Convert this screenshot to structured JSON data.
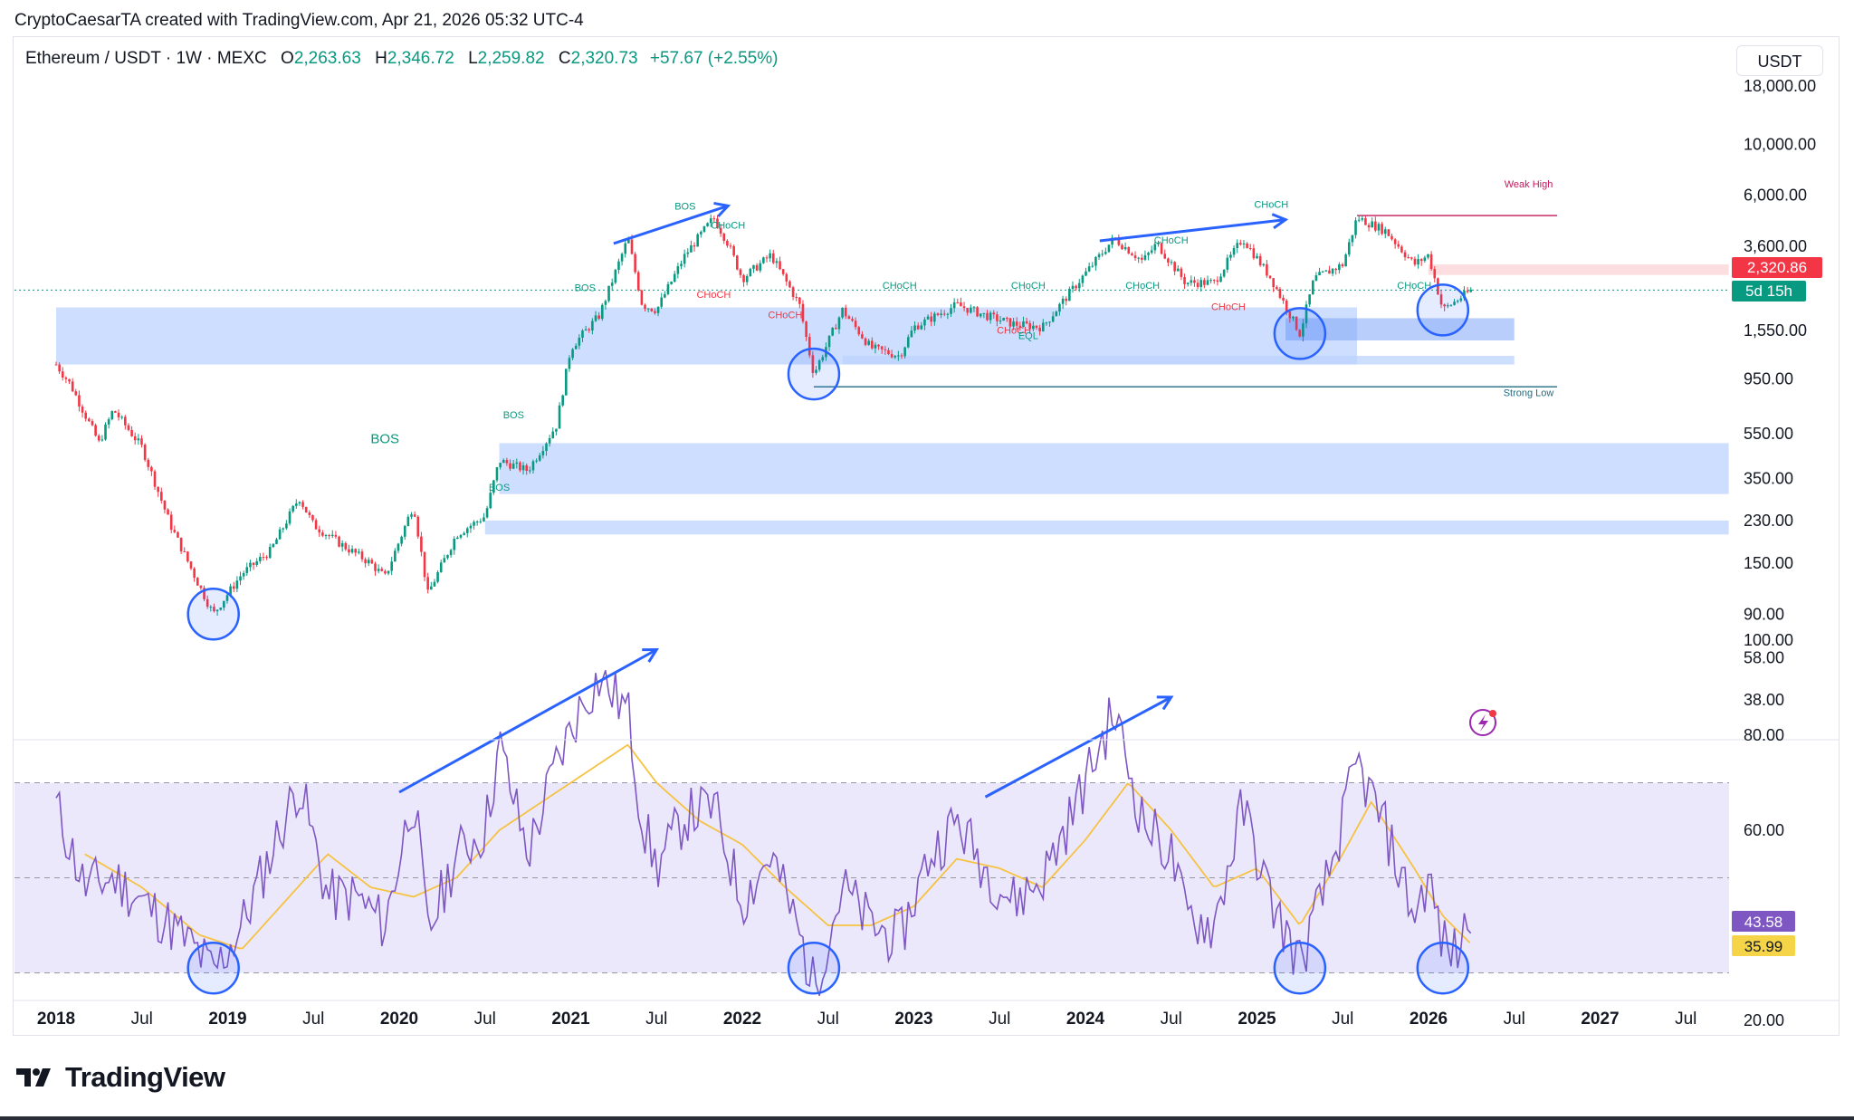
{
  "header": {
    "attribution": "CryptoCaesarTA created with TradingView.com, Apr 21, 2026 05:32 UTC-4"
  },
  "legend": {
    "symbol": "Ethereum / USDT · 1W · MEXC",
    "open_label": "O",
    "open": "2,263.63",
    "high_label": "H",
    "high": "2,346.72",
    "low_label": "L",
    "low": "2,259.82",
    "close_label": "C",
    "close": "2,320.73",
    "change": "+57.67 (+2.55%)"
  },
  "currency_button": "USDT",
  "brand": "TradingView",
  "colors": {
    "up": "#089981",
    "down": "#f23645",
    "zone": "#bcd3ff",
    "zone_dark": "#7fa6f5",
    "arrow": "#2962ff",
    "rsi": "#7e57c2",
    "rsi_ma": "#f5c242",
    "rsi_band": "#ece8fb"
  },
  "chart_data": [
    {
      "type": "candlestick",
      "title": "Ethereum / USDT · 1W · MEXC",
      "scale": "log",
      "y_ticks": [
        "18,000.00",
        "10,000.00",
        "6,000.00",
        "3,600.00",
        "1,550.00",
        "950.00",
        "550.00",
        "350.00",
        "230.00",
        "150.00",
        "90.00",
        "58.00",
        "38.00"
      ],
      "x_ticks": [
        "2018",
        "Jul",
        "2019",
        "Jul",
        "2020",
        "Jul",
        "2021",
        "Jul",
        "2022",
        "Jul",
        "2023",
        "Jul",
        "2024",
        "Jul",
        "2025",
        "Jul",
        "2026",
        "Jul",
        "2027",
        "Jul"
      ],
      "last_price_label": "2,320.86",
      "countdown_label": "5d 15h",
      "path_points": [
        [
          "2018-01",
          1100
        ],
        [
          "2018-02",
          900
        ],
        [
          "2018-04",
          500
        ],
        [
          "2018-05",
          700
        ],
        [
          "2018-07",
          480
        ],
        [
          "2018-09",
          220
        ],
        [
          "2018-11",
          120
        ],
        [
          "2018-12",
          90
        ],
        [
          "2019-02",
          135
        ],
        [
          "2019-04",
          170
        ],
        [
          "2019-06",
          290
        ],
        [
          "2019-07",
          220
        ],
        [
          "2019-09",
          180
        ],
        [
          "2019-11",
          150
        ],
        [
          "2019-12",
          130
        ],
        [
          "2020-02",
          270
        ],
        [
          "2020-03",
          110
        ],
        [
          "2020-05",
          200
        ],
        [
          "2020-07",
          240
        ],
        [
          "2020-08",
          420
        ],
        [
          "2020-10",
          380
        ],
        [
          "2020-12",
          600
        ],
        [
          "2021-01",
          1300
        ],
        [
          "2021-03",
          1800
        ],
        [
          "2021-05",
          3900
        ],
        [
          "2021-06",
          2000
        ],
        [
          "2021-07",
          1900
        ],
        [
          "2021-09",
          3300
        ],
        [
          "2021-11",
          4800
        ],
        [
          "2021-12",
          3700
        ],
        [
          "2022-01",
          2600
        ],
        [
          "2022-03",
          3300
        ],
        [
          "2022-05",
          2000
        ],
        [
          "2022-06",
          1000
        ],
        [
          "2022-08",
          1900
        ],
        [
          "2022-10",
          1300
        ],
        [
          "2022-12",
          1200
        ],
        [
          "2023-01",
          1600
        ],
        [
          "2023-04",
          2000
        ],
        [
          "2023-06",
          1800
        ],
        [
          "2023-08",
          1650
        ],
        [
          "2023-10",
          1600
        ],
        [
          "2023-12",
          2300
        ],
        [
          "2024-03",
          3900
        ],
        [
          "2024-05",
          3100
        ],
        [
          "2024-06",
          3700
        ],
        [
          "2024-08",
          2500
        ],
        [
          "2024-10",
          2500
        ],
        [
          "2024-12",
          3900
        ],
        [
          "2025-02",
          2600
        ],
        [
          "2025-04",
          1500
        ],
        [
          "2025-05",
          2600
        ],
        [
          "2025-07",
          3000
        ],
        [
          "2025-08",
          4800
        ],
        [
          "2025-10",
          4200
        ],
        [
          "2025-12",
          3000
        ],
        [
          "2026-01",
          3300
        ],
        [
          "2026-02",
          1900
        ],
        [
          "2026-03",
          2100
        ],
        [
          "2026-04",
          2320
        ]
      ],
      "zones": [
        {
          "from": 1100,
          "to": 1950,
          "x_start": "2018-01",
          "x_end": "2025-08",
          "tone": "zone"
        },
        {
          "from": 1100,
          "to": 1200,
          "x_start": "2022-08",
          "x_end": "2026-07",
          "tone": "zone"
        },
        {
          "from": 1400,
          "to": 1750,
          "x_start": "2025-03",
          "x_end": "2026-07",
          "tone": "zone_dark"
        },
        {
          "from": 300,
          "to": 500,
          "x_start": "2020-08",
          "x_end": "2027-10",
          "tone": "zone"
        },
        {
          "from": 200,
          "to": 230,
          "x_start": "2020-07",
          "x_end": "2027-10",
          "tone": "zone"
        },
        {
          "from": 2700,
          "to": 3000,
          "x_start": "2026-01",
          "x_end": "2027-10",
          "tone": "premium"
        }
      ],
      "annotations": [
        {
          "text": "BOS",
          "x": "2019-12",
          "y": 500
        },
        {
          "text": "BOS",
          "x": "2020-09",
          "y": 640
        },
        {
          "text": "BOS",
          "x": "2020-08",
          "y": 310
        },
        {
          "text": "BOS",
          "x": "2021-02",
          "y": 2300
        },
        {
          "text": "BOS",
          "x": "2021-09",
          "y": 5200
        },
        {
          "text": "CHoCH",
          "x": "2021-12",
          "y": 4300
        },
        {
          "text": "CHoCH",
          "x": "2021-11",
          "y": 2150
        },
        {
          "text": "CHoCH",
          "x": "2022-04",
          "y": 1750
        },
        {
          "text": "CHoCH",
          "x": "2022-12",
          "y": 2350
        },
        {
          "text": "CHoCH",
          "x": "2023-09",
          "y": 2350
        },
        {
          "text": "CHoCH",
          "x": "2023-08",
          "y": 1500
        },
        {
          "text": "EQL",
          "x": "2023-09",
          "y": 1420
        },
        {
          "text": "CHoCH",
          "x": "2024-07",
          "y": 3700
        },
        {
          "text": "CHoCH",
          "x": "2024-05",
          "y": 2350
        },
        {
          "text": "CHoCH",
          "x": "2024-11",
          "y": 1900
        },
        {
          "text": "CHoCH",
          "x": "2025-02",
          "y": 5300
        },
        {
          "text": "CHoCH",
          "x": "2025-12",
          "y": 2350
        },
        {
          "text": "Weak High",
          "x": "2026-08",
          "y": 6500
        },
        {
          "text": "Strong Low",
          "x": "2026-08",
          "y": 800
        }
      ],
      "levels": [
        {
          "value": 4900,
          "x_start": "2025-08",
          "x_end": "2026-10",
          "label": "Weak High"
        },
        {
          "value": 880,
          "x_start": "2022-06",
          "x_end": "2026-10",
          "label": "Strong Low"
        }
      ],
      "highlight_circles": [
        "2018-12",
        "2022-06",
        "2025-04",
        "2026-02"
      ],
      "trend_arrows": [
        {
          "from": [
            "2021-04",
            3700
          ],
          "to": [
            "2021-12",
            5400
          ]
        },
        {
          "from": [
            "2024-02",
            3800
          ],
          "to": [
            "2025-03",
            4700
          ]
        }
      ]
    },
    {
      "type": "line",
      "indicator": "RSI",
      "y_ticks": [
        "100.00",
        "80.00",
        "60.00",
        "20.00"
      ],
      "band": [
        30,
        70
      ],
      "midline": 50,
      "ylim": [
        20,
        100
      ],
      "series": [
        {
          "values_label": "43.58",
          "points": [
            [
              "2018-01",
              65
            ],
            [
              "2018-03",
              48
            ],
            [
              "2018-05",
              50
            ],
            [
              "2018-07",
              45
            ],
            [
              "2018-09",
              40
            ],
            [
              "2018-11",
              34
            ],
            [
              "2018-12",
              30
            ],
            [
              "2019-02",
              40
            ],
            [
              "2019-04",
              55
            ],
            [
              "2019-06",
              70
            ],
            [
              "2019-08",
              46
            ],
            [
              "2019-10",
              46
            ],
            [
              "2019-12",
              40
            ],
            [
              "2020-02",
              68
            ],
            [
              "2020-03",
              38
            ],
            [
              "2020-05",
              55
            ],
            [
              "2020-07",
              60
            ],
            [
              "2020-08",
              78
            ],
            [
              "2020-10",
              55
            ],
            [
              "2020-12",
              74
            ],
            [
              "2021-02",
              88
            ],
            [
              "2021-03",
              92
            ],
            [
              "2021-05",
              85
            ],
            [
              "2021-06",
              62
            ],
            [
              "2021-07",
              52
            ],
            [
              "2021-09",
              63
            ],
            [
              "2021-11",
              65
            ],
            [
              "2022-01",
              45
            ],
            [
              "2022-03",
              55
            ],
            [
              "2022-05",
              38
            ],
            [
              "2022-06",
              27
            ],
            [
              "2022-08",
              48
            ],
            [
              "2022-10",
              40
            ],
            [
              "2022-12",
              37
            ],
            [
              "2023-02",
              54
            ],
            [
              "2023-04",
              62
            ],
            [
              "2023-06",
              52
            ],
            [
              "2023-08",
              45
            ],
            [
              "2023-10",
              50
            ],
            [
              "2023-12",
              63
            ],
            [
              "2024-03",
              85
            ],
            [
              "2024-05",
              62
            ],
            [
              "2024-07",
              55
            ],
            [
              "2024-08",
              42
            ],
            [
              "2024-10",
              40
            ],
            [
              "2024-12",
              65
            ],
            [
              "2025-02",
              45
            ],
            [
              "2025-04",
              32
            ],
            [
              "2025-06",
              50
            ],
            [
              "2025-08",
              74
            ],
            [
              "2025-10",
              60
            ],
            [
              "2025-12",
              42
            ],
            [
              "2026-01",
              50
            ],
            [
              "2026-02",
              36
            ],
            [
              "2026-03",
              34
            ],
            [
              "2026-04",
              44
            ]
          ]
        },
        {
          "values_label": "35.99",
          "points": [
            [
              "2018-03",
              55
            ],
            [
              "2018-07",
              48
            ],
            [
              "2018-11",
              38
            ],
            [
              "2019-02",
              35
            ],
            [
              "2019-05",
              45
            ],
            [
              "2019-08",
              55
            ],
            [
              "2019-11",
              48
            ],
            [
              "2020-02",
              46
            ],
            [
              "2020-05",
              50
            ],
            [
              "2020-08",
              60
            ],
            [
              "2020-11",
              66
            ],
            [
              "2021-02",
              72
            ],
            [
              "2021-05",
              78
            ],
            [
              "2021-07",
              70
            ],
            [
              "2021-10",
              62
            ],
            [
              "2022-01",
              57
            ],
            [
              "2022-04",
              48
            ],
            [
              "2022-07",
              40
            ],
            [
              "2022-10",
              40
            ],
            [
              "2023-01",
              44
            ],
            [
              "2023-04",
              54
            ],
            [
              "2023-07",
              52
            ],
            [
              "2023-10",
              48
            ],
            [
              "2024-01",
              58
            ],
            [
              "2024-04",
              70
            ],
            [
              "2024-07",
              60
            ],
            [
              "2024-10",
              48
            ],
            [
              "2025-01",
              52
            ],
            [
              "2025-04",
              40
            ],
            [
              "2025-07",
              55
            ],
            [
              "2025-09",
              66
            ],
            [
              "2025-12",
              52
            ],
            [
              "2026-02",
              42
            ],
            [
              "2026-04",
              36
            ]
          ]
        }
      ],
      "highlight_circles": [
        "2018-12",
        "2022-06",
        "2025-04",
        "2026-02"
      ],
      "trend_arrows": [
        {
          "from": [
            "2020-01",
            68
          ],
          "to": [
            "2021-07",
            98
          ]
        },
        {
          "from": [
            "2023-06",
            67
          ],
          "to": [
            "2024-07",
            88
          ]
        }
      ]
    }
  ]
}
